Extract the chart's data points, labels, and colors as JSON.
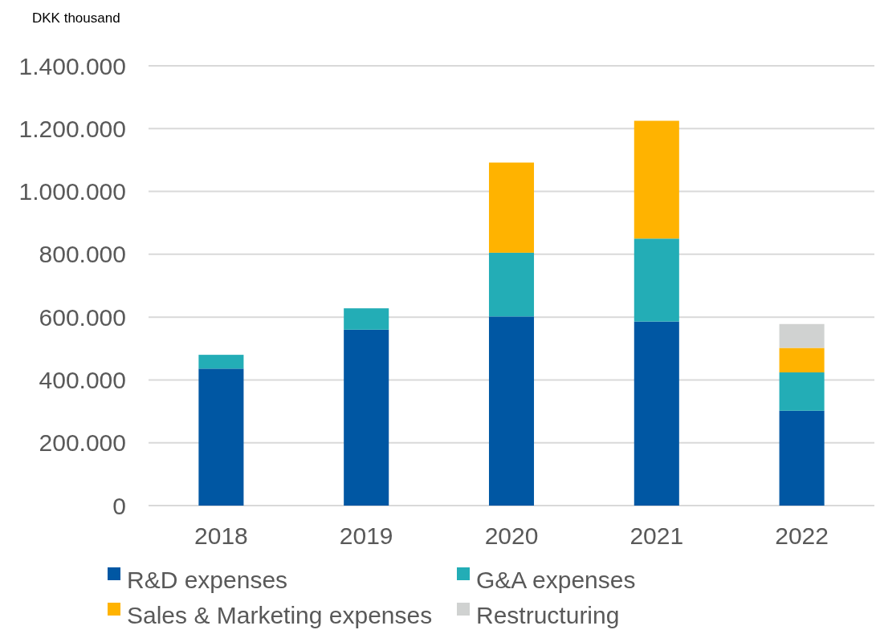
{
  "chart_data": {
    "type": "bar",
    "ylabel": "DKK thousand",
    "categories": [
      "2018",
      "2019",
      "2020",
      "2021",
      "2022"
    ],
    "stacked": true,
    "ylim": [
      0,
      1400000
    ],
    "yticks": [
      {
        "value": 0,
        "label": "0"
      },
      {
        "value": 200000,
        "label": "200.000"
      },
      {
        "value": 400000,
        "label": "400.000"
      },
      {
        "value": 600000,
        "label": "600.000"
      },
      {
        "value": 800000,
        "label": "800.000"
      },
      {
        "value": 1000000,
        "label": "1.000.000"
      },
      {
        "value": 1200000,
        "label": "1.200.000"
      },
      {
        "value": 1400000,
        "label": "1.400.000"
      }
    ],
    "grid": "y",
    "legend": "bottom",
    "series": [
      {
        "name": "R&D expenses",
        "color": "#0057a3",
        "values": [
          436000,
          560000,
          602000,
          586000,
          302000
        ]
      },
      {
        "name": "G&A expenses",
        "color": "#23adb6",
        "values": [
          44000,
          68000,
          203000,
          264000,
          122000
        ]
      },
      {
        "name": "Sales & Marketing expenses",
        "color": "#ffb300",
        "values": [
          null,
          null,
          287000,
          375000,
          78000
        ]
      },
      {
        "name": "Restructuring",
        "color": "#d0d2d1",
        "values": [
          null,
          null,
          null,
          null,
          76000
        ]
      }
    ]
  }
}
